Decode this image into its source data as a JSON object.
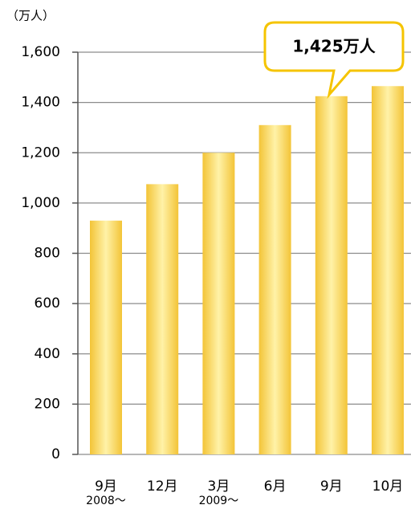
{
  "chart_data": {
    "type": "bar",
    "unit_label": "（万人）",
    "categories": [
      "9月",
      "12月",
      "3月",
      "6月",
      "9月",
      "10月"
    ],
    "sub_categories": [
      "2008～",
      null,
      "2009～",
      null,
      null,
      null
    ],
    "values": [
      930,
      1075,
      1200,
      1310,
      1425,
      1465
    ],
    "value_labels": [
      null,
      null,
      null,
      null,
      "1,425万人",
      null
    ],
    "color": "#f3c437",
    "ylim": [
      0,
      1600
    ],
    "yticks": [
      0,
      200,
      400,
      600,
      800,
      {
        "value": 1000,
        "label": "1,000"
      },
      {
        "value": 1200,
        "label": "1,200"
      },
      {
        "value": 1400,
        "label": "1,400"
      },
      {
        "value": 1600,
        "label": "1,600"
      }
    ],
    "grid": true
  }
}
